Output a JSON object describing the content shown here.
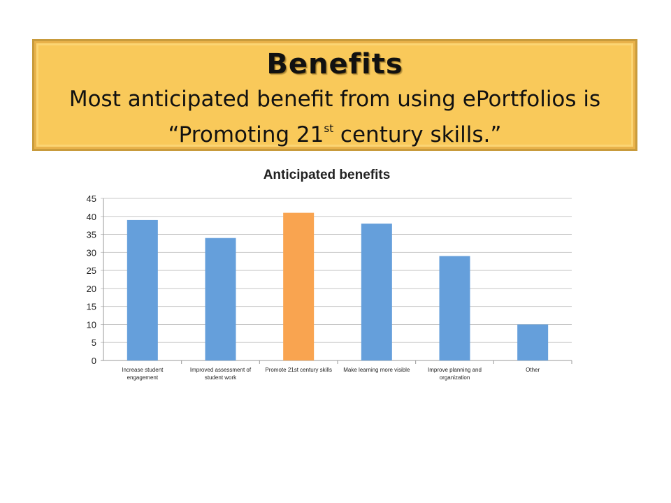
{
  "banner": {
    "title": "Benefits",
    "subtitle_line1": "Most anticipated benefit from using ePortfolios is",
    "subtitle_line2_pre": "“Promoting 21",
    "subtitle_line2_sup": "st",
    "subtitle_line2_post": " century skills.”",
    "background_color": "#f9c95a"
  },
  "chart_data": {
    "type": "bar",
    "title": "Anticipated benefits",
    "xlabel": "",
    "ylabel": "",
    "ylim": [
      0,
      45
    ],
    "y_ticks": [
      0,
      5,
      10,
      15,
      20,
      25,
      30,
      35,
      40,
      45
    ],
    "grid": true,
    "legend": "none",
    "categories": [
      "Increase student engagement",
      "Improved assessment of student work",
      "Promote 21st century skills",
      "Make learning more visible",
      "Improve planning and organization",
      "Other"
    ],
    "category_label_lines": [
      [
        "Increase student",
        "engagement"
      ],
      [
        "Improved assessment of",
        "student work"
      ],
      [
        "Promote 21st century skills"
      ],
      [
        "Make learning more visible"
      ],
      [
        "Improve planning and",
        "organization"
      ],
      [
        "Other"
      ]
    ],
    "values": [
      39,
      34,
      41,
      38,
      29,
      10
    ],
    "bar_colors": [
      "#659fdb",
      "#659fdb",
      "#f9a450",
      "#659fdb",
      "#659fdb",
      "#659fdb"
    ],
    "highlight_category": "Promote 21st century skills"
  }
}
